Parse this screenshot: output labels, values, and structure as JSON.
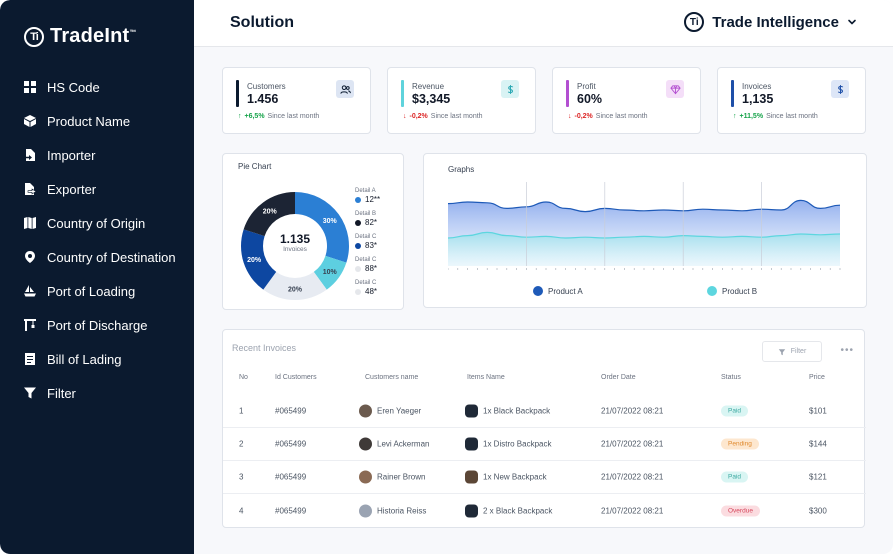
{
  "brand": {
    "name": "TradeInt",
    "tm": "™",
    "logo_text": "Ti"
  },
  "sidebar": {
    "items": [
      {
        "label": "HS Code",
        "icon": "grid-icon"
      },
      {
        "label": "Product Name",
        "icon": "box-icon"
      },
      {
        "label": "Importer",
        "icon": "file-import-icon"
      },
      {
        "label": "Exporter",
        "icon": "file-export-icon"
      },
      {
        "label": "Country of Origin",
        "icon": "map-icon"
      },
      {
        "label": "Country of Destination",
        "icon": "location-pin-icon"
      },
      {
        "label": "Port of Loading",
        "icon": "ship-icon"
      },
      {
        "label": "Port of Discharge",
        "icon": "crane-icon"
      },
      {
        "label": "Bill of Lading",
        "icon": "document-icon"
      },
      {
        "label": "Filter",
        "icon": "filter-icon"
      }
    ]
  },
  "header": {
    "title": "Solution",
    "workspace": "Trade Intelligence",
    "workspace_logo": "Ti"
  },
  "kpis": [
    {
      "label": "Customers",
      "value": "1.456",
      "trend": "+6,5%",
      "trend_dir": "up",
      "since": "Since last month",
      "color": "#0b1a2f",
      "icon": "users-icon",
      "badge_bg": "#dde5f3"
    },
    {
      "label": "Revenue",
      "value": "$3,345",
      "trend": "-0,2%",
      "trend_dir": "down",
      "since": "Since last month",
      "color": "#5fd3dc",
      "icon": "dollar-icon",
      "badge_bg": "#d9f3f4"
    },
    {
      "label": "Profit",
      "value": "60%",
      "trend": "-0,2%",
      "trend_dir": "down",
      "since": "Since last month",
      "color": "#b34fd1",
      "icon": "diamond-icon",
      "badge_bg": "#f4def8"
    },
    {
      "label": "Invoices",
      "value": "1,135",
      "trend": "+11,5%",
      "trend_dir": "up",
      "since": "Since last month",
      "color": "#1e4fa8",
      "icon": "dollar-icon",
      "badge_bg": "#dde6f7"
    }
  ],
  "pie": {
    "title": "Pie Chart",
    "center_value": "1.135",
    "center_label": "Invoices",
    "slices": [
      {
        "pct": 30,
        "label": "30%",
        "color": "#2b7fd4"
      },
      {
        "pct": 10,
        "label": "10%",
        "color": "#5dcfe0"
      },
      {
        "pct": 20,
        "label": "20%",
        "color": "#e7ebf2"
      },
      {
        "pct": 20,
        "label": "20%",
        "color": "#0d47a1"
      },
      {
        "pct": 20,
        "label": "20%",
        "color": "#1c2434"
      }
    ],
    "legend": [
      {
        "name": "Detail A",
        "value": "12**",
        "color": "#2b7fd4"
      },
      {
        "name": "Detail B",
        "value": "82*",
        "color": "#111827"
      },
      {
        "name": "Detail C",
        "value": "83*",
        "color": "#0d47a1"
      },
      {
        "name": "Detail C",
        "value": "88*",
        "color": "#e5e7eb"
      },
      {
        "name": "Detail C",
        "value": "48*",
        "color": "#e5e7eb"
      }
    ]
  },
  "graph": {
    "title": "Graphs",
    "series": [
      {
        "name": "Product A",
        "color": "#1e5ab8"
      },
      {
        "name": "Product B",
        "color": "#5dd6df"
      }
    ]
  },
  "chart_data": {
    "type": "area",
    "title": "Graphs",
    "x": [
      0,
      1,
      2,
      3,
      4,
      5,
      6,
      7,
      8,
      9,
      10,
      11,
      12,
      13,
      14,
      15,
      16,
      17,
      18,
      19,
      20
    ],
    "series": [
      {
        "name": "Product A",
        "values": [
          0.78,
          0.8,
          0.79,
          0.72,
          0.74,
          0.8,
          0.72,
          0.68,
          0.72,
          0.7,
          0.69,
          0.7,
          0.69,
          0.71,
          0.7,
          0.69,
          0.71,
          0.7,
          0.82,
          0.72,
          0.76
        ]
      },
      {
        "name": "Product B",
        "values": [
          0.35,
          0.38,
          0.42,
          0.38,
          0.36,
          0.37,
          0.35,
          0.36,
          0.35,
          0.36,
          0.37,
          0.36,
          0.38,
          0.37,
          0.36,
          0.37,
          0.36,
          0.38,
          0.4,
          0.39,
          0.4
        ]
      }
    ],
    "ylim": [
      0,
      1
    ]
  },
  "table": {
    "title": "Recent Invoices",
    "filter_label": "Filter",
    "more": "•••",
    "columns": [
      "No",
      "Id Customers",
      "Customers name",
      "Items Name",
      "Order Date",
      "Status",
      "Price"
    ],
    "rows": [
      {
        "no": "1",
        "id": "#065499",
        "customer": "Eren Yaeger",
        "item": "1x Black Backpack",
        "date": "21/07/2022  08:21",
        "status": "Paid",
        "price": "$101",
        "status_bg": "#d9f5f3",
        "status_fg": "#3aa8a0",
        "avatar": "#6b5a4e",
        "item_color": "#1f2937"
      },
      {
        "no": "2",
        "id": "#065499",
        "customer": "Levi Ackerman",
        "item": "1x Distro Backpack",
        "date": "21/07/2022  08:21",
        "status": "Pending",
        "price": "$144",
        "status_bg": "#fde7cf",
        "status_fg": "#e08a2e",
        "avatar": "#3f3a38",
        "item_color": "#1f2937"
      },
      {
        "no": "3",
        "id": "#065499",
        "customer": "Rainer Brown",
        "item": "1x New Backpack",
        "date": "21/07/2022  08:21",
        "status": "Paid",
        "price": "$121",
        "status_bg": "#d9f5f3",
        "status_fg": "#3aa8a0",
        "avatar": "#8a6a54",
        "item_color": "#5b4636"
      },
      {
        "no": "4",
        "id": "#065499",
        "customer": "Historia Reiss",
        "item": "2 x Black Backpack",
        "date": "21/07/2022  08:21",
        "status": "Overdue",
        "price": "$300",
        "status_bg": "#fbdce0",
        "status_fg": "#d6475c",
        "avatar": "#9aa3b2",
        "item_color": "#1f2937"
      }
    ]
  }
}
